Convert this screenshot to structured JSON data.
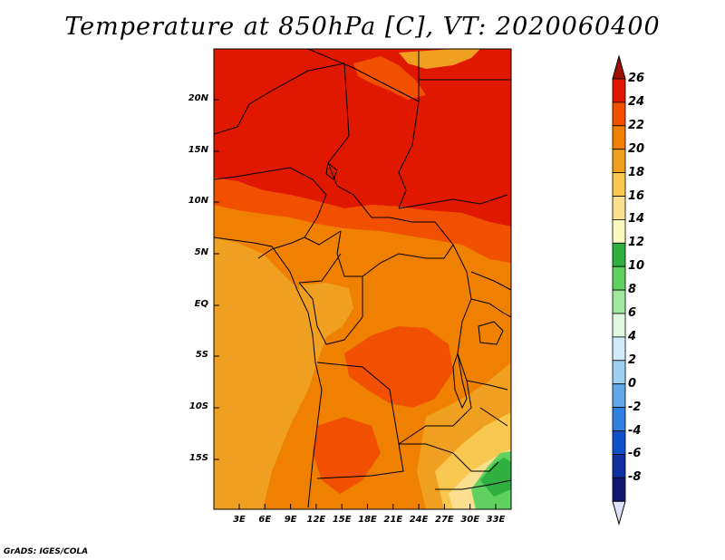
{
  "map": {
    "title": "Temperature at 850hPa [C], VT: 2020060400",
    "footer": "GrADS: IGES/COLA",
    "variable": "Temperature at 850hPa",
    "units": "C",
    "valid_time": "2020060400",
    "lat_labels": [
      "20N",
      "15N",
      "10N",
      "5N",
      "EQ",
      "5S",
      "10S",
      "15S"
    ],
    "lon_labels": [
      "3E",
      "6E",
      "9E",
      "12E",
      "15E",
      "18E",
      "21E",
      "24E",
      "27E",
      "30E",
      "33E"
    ],
    "colorbar": {
      "labels": [
        "26",
        "24",
        "22",
        "20",
        "18",
        "16",
        "14",
        "12",
        "10",
        "8",
        "6",
        "4",
        "2",
        "0",
        "-2",
        "-4",
        "-6",
        "-8"
      ],
      "colors": [
        "#a01000",
        "#e01800",
        "#f05000",
        "#f08000",
        "#f0a020",
        "#f8c850",
        "#fae090",
        "#fafac0",
        "#30b040",
        "#60d060",
        "#a0e8a0",
        "#e0f8e0",
        "#d0ecfa",
        "#a0d0f0",
        "#60a8e8",
        "#3080e0",
        "#1050c8",
        "#1030a0",
        "#101870",
        "#e0e0f8"
      ]
    },
    "regions": {
      "north_hot": "#e01800",
      "mid_band": "#f05000",
      "interior": "#f08000",
      "coast": "#f0a020",
      "southeast_cool": "#fae090",
      "southeast_green": "#60d060",
      "border": "#000000"
    }
  }
}
